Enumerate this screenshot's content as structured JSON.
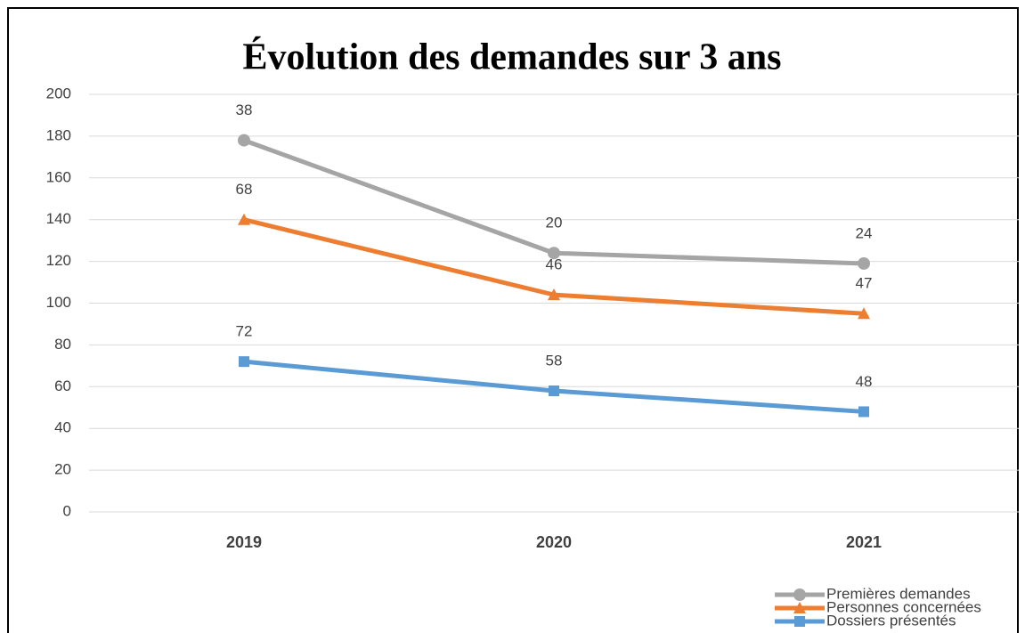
{
  "chart_data": {
    "type": "line",
    "stacked": true,
    "title": "Évolution des demandes sur 3 ans",
    "categories": [
      "2019",
      "2020",
      "2021"
    ],
    "series": [
      {
        "name": "Premières demandes",
        "color": "#a5a5a5",
        "marker": "circle",
        "values": [
          38,
          20,
          24
        ]
      },
      {
        "name": "Personnes concernées",
        "color": "#ed7d31",
        "marker": "triangle",
        "values": [
          68,
          46,
          47
        ]
      },
      {
        "name": "Dossiers présentés",
        "color": "#5b9bd5",
        "marker": "square",
        "values": [
          72,
          58,
          48
        ]
      }
    ],
    "ylim": [
      0,
      200
    ],
    "yticks": [
      0,
      20,
      40,
      60,
      80,
      100,
      120,
      140,
      160,
      180,
      200
    ],
    "grid": true,
    "legend": "bottom-right"
  }
}
